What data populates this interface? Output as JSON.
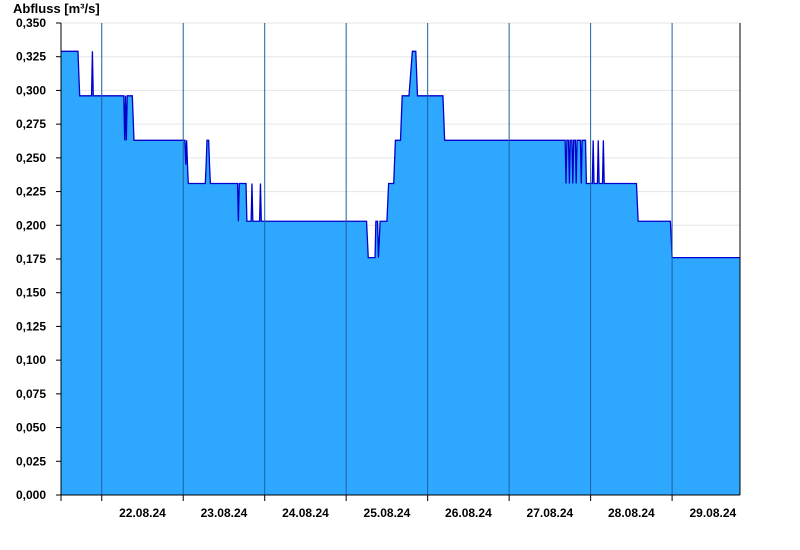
{
  "chart_data": {
    "type": "area",
    "title": "",
    "xlabel": "",
    "ylabel": "Abfluss [m³/s]",
    "ylim": [
      0,
      0.35
    ],
    "xlim": [
      "2024-08-21T12:00",
      "2024-08-29T20:00"
    ],
    "grid": true,
    "legend": "none",
    "y_ticks": [
      "0,000",
      "0,025",
      "0,050",
      "0,075",
      "0,100",
      "0,125",
      "0,150",
      "0,175",
      "0,200",
      "0,225",
      "0,250",
      "0,275",
      "0,300",
      "0,325",
      "0,350"
    ],
    "x_ticks": [
      "22.08.24",
      "23.08.24",
      "24.08.24",
      "25.08.24",
      "26.08.24",
      "27.08.24",
      "28.08.24",
      "29.08.24"
    ],
    "colors": {
      "fill": "#2ea8ff",
      "line": "#0000cc",
      "axis": "#000000",
      "grid": "#e6e6e6",
      "day_line": "#1f5fa0"
    },
    "series": [
      {
        "values": [
          [
            "2024-08-21T12:00",
            0.329
          ],
          [
            "2024-08-21T17:00",
            0.329
          ],
          [
            "2024-08-21T17:30",
            0.296
          ],
          [
            "2024-08-21T21:00",
            0.296
          ],
          [
            "2024-08-21T21:15",
            0.329
          ],
          [
            "2024-08-21T21:30",
            0.296
          ],
          [
            "2024-08-22T06:30",
            0.296
          ],
          [
            "2024-08-22T06:45",
            0.263
          ],
          [
            "2024-08-22T07:00",
            0.296
          ],
          [
            "2024-08-22T07:15",
            0.263
          ],
          [
            "2024-08-22T07:30",
            0.296
          ],
          [
            "2024-08-22T09:00",
            0.296
          ],
          [
            "2024-08-22T09:30",
            0.263
          ],
          [
            "2024-08-23T00:30",
            0.263
          ],
          [
            "2024-08-23T00:45",
            0.245
          ],
          [
            "2024-08-23T01:00",
            0.263
          ],
          [
            "2024-08-23T01:15",
            0.245
          ],
          [
            "2024-08-23T01:30",
            0.231
          ],
          [
            "2024-08-23T06:30",
            0.231
          ],
          [
            "2024-08-23T06:45",
            0.245
          ],
          [
            "2024-08-23T07:00",
            0.263
          ],
          [
            "2024-08-23T07:30",
            0.263
          ],
          [
            "2024-08-23T07:45",
            0.245
          ],
          [
            "2024-08-23T08:00",
            0.231
          ],
          [
            "2024-08-23T16:00",
            0.231
          ],
          [
            "2024-08-23T16:15",
            0.203
          ],
          [
            "2024-08-23T16:30",
            0.231
          ],
          [
            "2024-08-23T18:30",
            0.231
          ],
          [
            "2024-08-23T18:45",
            0.203
          ],
          [
            "2024-08-23T20:00",
            0.203
          ],
          [
            "2024-08-23T20:15",
            0.231
          ],
          [
            "2024-08-23T20:30",
            0.203
          ],
          [
            "2024-08-23T22:30",
            0.203
          ],
          [
            "2024-08-23T22:45",
            0.231
          ],
          [
            "2024-08-23T23:00",
            0.203
          ],
          [
            "2024-08-25T06:00",
            0.203
          ],
          [
            "2024-08-25T06:30",
            0.176
          ],
          [
            "2024-08-25T08:30",
            0.176
          ],
          [
            "2024-08-25T08:45",
            0.203
          ],
          [
            "2024-08-25T09:15",
            0.203
          ],
          [
            "2024-08-25T09:30",
            0.176
          ],
          [
            "2024-08-25T10:00",
            0.203
          ],
          [
            "2024-08-25T12:00",
            0.203
          ],
          [
            "2024-08-25T12:30",
            0.231
          ],
          [
            "2024-08-25T14:00",
            0.231
          ],
          [
            "2024-08-25T14:30",
            0.263
          ],
          [
            "2024-08-25T16:00",
            0.263
          ],
          [
            "2024-08-25T16:30",
            0.296
          ],
          [
            "2024-08-25T18:30",
            0.296
          ],
          [
            "2024-08-25T19:30",
            0.329
          ],
          [
            "2024-08-25T20:30",
            0.329
          ],
          [
            "2024-08-25T21:00",
            0.296
          ],
          [
            "2024-08-26T04:30",
            0.296
          ],
          [
            "2024-08-26T05:00",
            0.263
          ],
          [
            "2024-08-27T16:30",
            0.263
          ],
          [
            "2024-08-27T16:45",
            0.231
          ],
          [
            "2024-08-27T17:00",
            0.263
          ],
          [
            "2024-08-27T17:30",
            0.263
          ],
          [
            "2024-08-27T17:45",
            0.231
          ],
          [
            "2024-08-27T18:00",
            0.263
          ],
          [
            "2024-08-27T18:30",
            0.263
          ],
          [
            "2024-08-27T18:45",
            0.231
          ],
          [
            "2024-08-27T19:00",
            0.263
          ],
          [
            "2024-08-27T19:30",
            0.263
          ],
          [
            "2024-08-27T19:45",
            0.231
          ],
          [
            "2024-08-27T20:00",
            0.263
          ],
          [
            "2024-08-27T21:00",
            0.263
          ],
          [
            "2024-08-27T21:15",
            0.231
          ],
          [
            "2024-08-27T21:30",
            0.263
          ],
          [
            "2024-08-27T22:30",
            0.263
          ],
          [
            "2024-08-27T22:45",
            0.231
          ],
          [
            "2024-08-28T00:30",
            0.231
          ],
          [
            "2024-08-28T00:45",
            0.263
          ],
          [
            "2024-08-28T01:00",
            0.231
          ],
          [
            "2024-08-28T02:00",
            0.231
          ],
          [
            "2024-08-28T02:15",
            0.263
          ],
          [
            "2024-08-28T02:30",
            0.231
          ],
          [
            "2024-08-28T03:30",
            0.231
          ],
          [
            "2024-08-28T03:45",
            0.263
          ],
          [
            "2024-08-28T04:00",
            0.231
          ],
          [
            "2024-08-28T13:30",
            0.231
          ],
          [
            "2024-08-28T14:00",
            0.203
          ],
          [
            "2024-08-28T23:30",
            0.203
          ],
          [
            "2024-08-29T00:00",
            0.176
          ],
          [
            "2024-08-29T20:00",
            0.176
          ]
        ]
      }
    ]
  }
}
